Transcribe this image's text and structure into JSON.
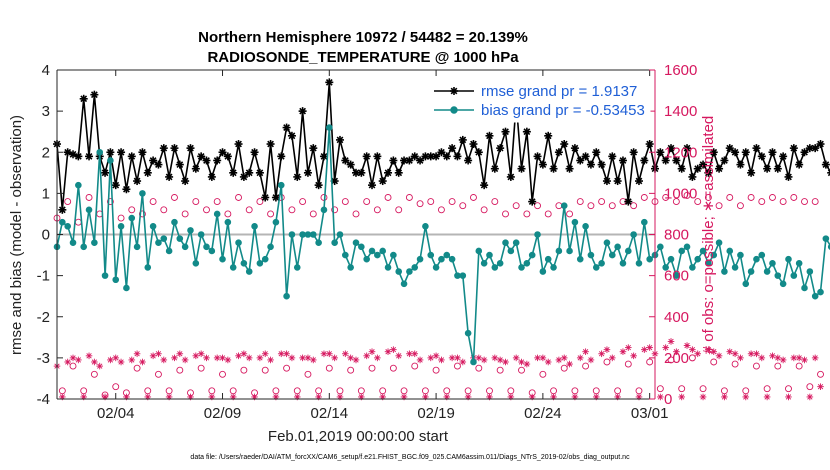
{
  "chart_data": {
    "type": "line",
    "title": "Northern Hemisphere 10972 / 54482 = 20.139%",
    "subtitle": "RADIOSONDE_TEMPERATURE @ 1000 hPa",
    "xlabel": "Feb.01,2019 00:00:00 start",
    "ylabel_left": "rmse and bias (model - observation)",
    "ylabel_right": "# of obs: o=possible; ∗=assimilated",
    "footnote": "data file: /Users/raeder/DAI/ATM_forcXX/CAM6_setup/f.e21.FHIST_BGC.f09_025.CAM6assim.011/Diags_NTrS_2019-02/obs_diag_output.nc",
    "x_range_days": [
      0.25,
      28.25
    ],
    "x_ticks": [
      {
        "day": 3,
        "label": "02/04"
      },
      {
        "day": 8,
        "label": "02/09"
      },
      {
        "day": 13,
        "label": "02/14"
      },
      {
        "day": 18,
        "label": "02/19"
      },
      {
        "day": 23,
        "label": "02/24"
      },
      {
        "day": 28,
        "label": "03/01"
      }
    ],
    "ylim_left": [
      -4,
      4
    ],
    "yticks_left": [
      "-4",
      "-3",
      "-2",
      "-1",
      "0",
      "1",
      "2",
      "3",
      "4"
    ],
    "ylim_right": [
      0,
      1600
    ],
    "yticks_right": [
      "0",
      "200",
      "400",
      "600",
      "800",
      "1000",
      "1200",
      "1400",
      "1600"
    ],
    "legend_location": "top-right",
    "start_day": 0.25,
    "step_days": 0.25,
    "series": [
      {
        "name": "rmse grand pr = 1.9137",
        "axis": "left",
        "color": "#000000",
        "marker": "asterisk",
        "values": [
          2.2,
          0.6,
          2.0,
          1.95,
          1.9,
          3.3,
          1.9,
          3.4,
          1.9,
          1.5,
          2.0,
          1.2,
          2.0,
          1.1,
          1.9,
          1.3,
          2.0,
          1.5,
          1.8,
          1.7,
          2.1,
          1.4,
          2.1,
          1.7,
          1.3,
          2.1,
          1.6,
          1.9,
          1.8,
          1.4,
          1.8,
          2.0,
          1.9,
          1.5,
          2.2,
          1.4,
          1.5,
          2.0,
          1.5,
          0.9,
          2.2,
          0.9,
          1.9,
          2.6,
          2.4,
          1.4,
          3.0,
          1.5,
          2.1,
          1.2,
          1.9,
          3.7,
          1.3,
          2.3,
          1.8,
          1.7,
          1.5,
          1.5,
          1.9,
          1.2,
          1.9,
          1.3,
          1.5,
          1.8,
          1.5,
          1.8,
          1.8,
          1.9,
          1.8,
          1.9,
          1.9,
          1.9,
          2.0,
          1.9,
          2.1,
          1.9,
          2.3,
          1.8,
          2.2,
          2.0,
          1.2,
          2.4,
          1.6,
          2.1,
          2.5,
          1.4,
          3.2,
          1.6,
          2.5,
          0.8,
          1.9,
          1.7,
          2.4,
          1.6,
          2.0,
          2.2,
          1.6,
          2.1,
          1.8,
          1.9,
          1.7,
          2.0,
          1.7,
          1.3,
          1.9,
          1.3,
          1.8,
          0.8,
          2.0,
          1.3,
          1.8,
          2.2,
          1.6,
          2.0,
          1.8,
          2.1,
          1.8,
          1.6,
          2.1,
          1.4,
          1.6,
          1.7,
          1.5,
          2.0,
          1.6,
          1.8,
          2.1,
          2.0,
          1.7,
          2.0,
          1.5,
          2.1,
          1.9,
          1.6,
          2.0,
          1.6,
          1.9,
          1.4,
          2.1,
          1.7,
          2.0,
          2.1,
          2.1,
          2.2,
          1.7,
          1.5
        ]
      },
      {
        "name": "bias grand pr = -0.53453",
        "axis": "left",
        "color": "#128a89",
        "marker": "filled-circle",
        "values": [
          -0.3,
          0.3,
          0.2,
          -0.2,
          1.2,
          -0.3,
          0.6,
          -0.2,
          2.0,
          -1.0,
          1.8,
          -1.1,
          0.2,
          -1.3,
          0.4,
          -0.3,
          1.0,
          -0.8,
          0.2,
          -0.2,
          -0.1,
          -0.4,
          0.3,
          -0.1,
          -0.3,
          0.1,
          -0.7,
          0.0,
          -0.3,
          -0.4,
          0.5,
          -0.6,
          0.3,
          -0.8,
          -0.2,
          -0.7,
          -0.9,
          0.2,
          -0.7,
          -0.6,
          -0.3,
          0.3,
          1.2,
          -1.5,
          0.0,
          -0.8,
          0.0,
          0.0,
          0.0,
          -0.2,
          0.6,
          2.6,
          -0.2,
          0.0,
          -0.5,
          -0.8,
          -0.2,
          -0.3,
          -0.6,
          -0.4,
          -0.5,
          -0.4,
          -0.8,
          -0.5,
          -0.9,
          -1.2,
          -0.9,
          -0.8,
          -0.6,
          0.2,
          -0.5,
          -0.8,
          -0.6,
          -0.5,
          -0.6,
          -1.0,
          -1.0,
          -2.4,
          -3.1,
          -0.4,
          -0.7,
          -0.5,
          -0.8,
          -0.7,
          -0.2,
          -0.4,
          -0.2,
          -0.8,
          -0.7,
          -0.5,
          0.0,
          -0.9,
          -0.6,
          -0.8,
          -0.4,
          0.7,
          -0.4,
          0.3,
          -0.6,
          0.2,
          -0.5,
          -0.8,
          -0.7,
          -0.2,
          -0.5,
          -0.3,
          -0.7,
          -0.4,
          0.0,
          -0.7,
          0.3,
          -0.6,
          -0.5,
          -0.3,
          -0.8,
          -0.6,
          -1.0,
          -0.4,
          -0.3,
          -0.8,
          -0.6,
          -0.4,
          -0.7,
          -0.5,
          -0.2,
          -0.9,
          -0.4,
          -0.8,
          -0.5,
          -1.2,
          -0.9,
          -0.6,
          -0.5,
          -0.9,
          -0.7,
          -1.0,
          -1.2,
          -0.6,
          -1.0,
          -0.7,
          -1.3,
          -0.9,
          -1.5,
          -1.4,
          -0.1,
          -0.3
        ]
      },
      {
        "name": "# of obs possible",
        "axis": "right",
        "color": "#d6185f",
        "marker": "open-circle",
        "values": [
          880,
          40,
          960,
          160,
          860,
          40,
          980,
          120,
          900,
          20,
          960,
          60,
          880,
          30,
          920,
          150,
          900,
          40,
          960,
          120,
          920,
          40,
          980,
          140,
          900,
          30,
          960,
          150,
          920,
          40,
          960,
          120,
          900,
          40,
          980,
          140,
          920,
          30,
          960,
          140,
          900,
          40,
          980,
          150,
          920,
          40,
          960,
          120,
          900,
          40,
          980,
          150,
          920,
          40,
          960,
          140,
          900,
          40,
          960,
          150,
          920,
          40,
          980,
          150,
          920,
          40,
          980,
          160,
          950,
          40,
          960,
          140,
          920,
          40,
          960,
          160,
          940,
          40,
          980,
          150,
          920,
          40,
          960,
          140,
          900,
          40,
          940,
          140,
          900,
          30,
          940,
          120,
          900,
          40,
          940,
          150,
          900,
          40,
          960,
          160,
          940,
          40,
          960,
          180,
          940,
          40,
          960,
          170,
          940,
          40,
          980,
          180,
          960,
          50,
          980,
          190,
          960,
          50,
          990,
          200,
          960,
          50,
          980,
          180,
          940,
          40,
          980,
          170,
          940,
          40,
          980,
          160,
          960,
          50,
          980,
          160,
          960,
          50,
          980,
          160,
          960,
          60,
          960,
          120
        ]
      },
      {
        "name": "# of obs assimilated",
        "axis": "right",
        "color": "#d6185f",
        "marker": "asterisk",
        "values": [
          160,
          10,
          180,
          200,
          190,
          10,
          210,
          180,
          160,
          10,
          190,
          200,
          180,
          10,
          190,
          220,
          180,
          10,
          210,
          220,
          190,
          10,
          200,
          220,
          190,
          10,
          210,
          220,
          200,
          10,
          200,
          200,
          190,
          10,
          210,
          220,
          200,
          10,
          200,
          220,
          190,
          10,
          220,
          220,
          200,
          10,
          200,
          200,
          190,
          10,
          220,
          220,
          200,
          10,
          220,
          200,
          190,
          10,
          210,
          230,
          200,
          10,
          230,
          240,
          210,
          10,
          220,
          220,
          190,
          10,
          200,
          210,
          190,
          10,
          200,
          200,
          180,
          10,
          200,
          200,
          190,
          10,
          200,
          190,
          180,
          10,
          200,
          180,
          170,
          10,
          200,
          200,
          180,
          10,
          190,
          200,
          170,
          10,
          200,
          230,
          190,
          10,
          220,
          240,
          200,
          10,
          230,
          250,
          210,
          10,
          240,
          250,
          220,
          10,
          250,
          280,
          230,
          10,
          260,
          240,
          220,
          10,
          240,
          230,
          210,
          10,
          230,
          220,
          200,
          10,
          220,
          220,
          200,
          10,
          210,
          200,
          190,
          10,
          200,
          200,
          190,
          10,
          200,
          60
        ]
      }
    ]
  }
}
